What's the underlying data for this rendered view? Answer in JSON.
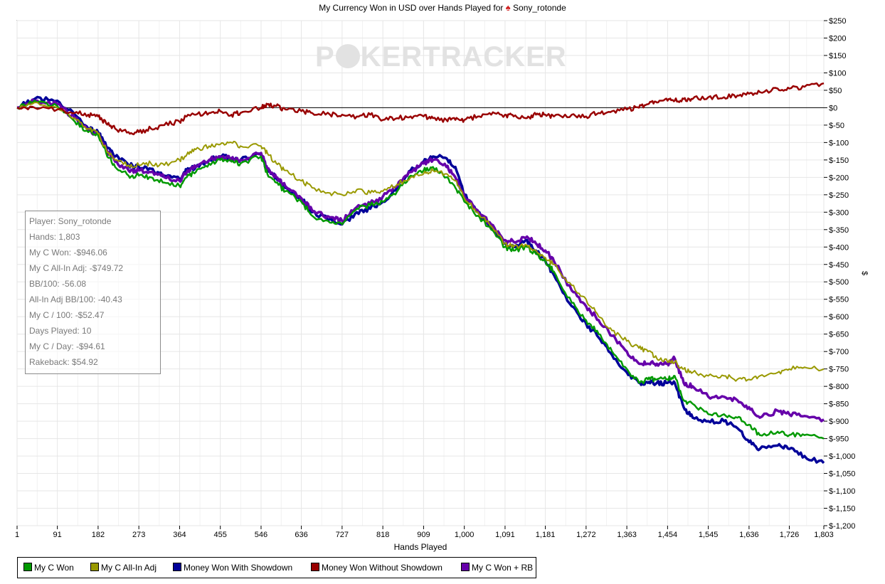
{
  "chart_data": {
    "type": "line",
    "title": "My Currency Won in USD over Hands Played for",
    "player": "Sony_rotonde",
    "watermark": {
      "text_left": "P",
      "text_right": "KERTRACKER"
    },
    "xlabel": "Hands Played",
    "ylabel": "$",
    "xlim": [
      1,
      1803
    ],
    "ylim": [
      -1200,
      250
    ],
    "x_ticks": [
      "1",
      "91",
      "182",
      "273",
      "364",
      "455",
      "546",
      "636",
      "727",
      "818",
      "909",
      "1,000",
      "1,091",
      "1,181",
      "1,272",
      "1,363",
      "1,454",
      "1,545",
      "1,636",
      "1,726",
      "1,803"
    ],
    "x_tick_values": [
      1,
      91,
      182,
      273,
      364,
      455,
      546,
      636,
      727,
      818,
      909,
      1000,
      1091,
      1181,
      1272,
      1363,
      1454,
      1545,
      1636,
      1726,
      1803
    ],
    "y_ticks": [
      "$250",
      "$200",
      "$150",
      "$100",
      "$50",
      "$0",
      "$-50",
      "$-100",
      "$-150",
      "$-200",
      "$-250",
      "$-300",
      "$-350",
      "$-400",
      "$-450",
      "$-500",
      "$-550",
      "$-600",
      "$-650",
      "$-700",
      "$-750",
      "$-800",
      "$-850",
      "$-900",
      "$-950",
      "$-1,000",
      "$-1,050",
      "$-1,100",
      "$-1,150",
      "$-1,200"
    ],
    "y_tick_values": [
      250,
      200,
      150,
      100,
      50,
      0,
      -50,
      -100,
      -150,
      -200,
      -250,
      -300,
      -350,
      -400,
      -450,
      -500,
      -550,
      -600,
      -650,
      -700,
      -750,
      -800,
      -850,
      -900,
      -950,
      -1000,
      -1050,
      -1100,
      -1150,
      -1200
    ],
    "grid": true,
    "legend_position": "bottom",
    "x": [
      1,
      40,
      91,
      130,
      160,
      182,
      200,
      220,
      250,
      273,
      300,
      330,
      364,
      380,
      400,
      430,
      455,
      480,
      500,
      546,
      560,
      580,
      600,
      636,
      660,
      700,
      727,
      760,
      790,
      818,
      850,
      880,
      909,
      930,
      960,
      980,
      1000,
      1030,
      1060,
      1091,
      1110,
      1140,
      1160,
      1181,
      1200,
      1240,
      1272,
      1300,
      1330,
      1363,
      1390,
      1410,
      1430,
      1454,
      1470,
      1490,
      1510,
      1545,
      1580,
      1610,
      1636,
      1660,
      1700,
      1726,
      1760,
      1803
    ],
    "series": [
      {
        "name": "My C Won",
        "color": "#009900",
        "values": [
          0,
          20,
          5,
          -40,
          -70,
          -80,
          -130,
          -170,
          -195,
          -195,
          -200,
          -215,
          -225,
          -200,
          -185,
          -160,
          -150,
          -155,
          -160,
          -140,
          -190,
          -215,
          -240,
          -270,
          -310,
          -330,
          -335,
          -290,
          -280,
          -270,
          -240,
          -195,
          -180,
          -170,
          -200,
          -230,
          -270,
          -310,
          -350,
          -400,
          -410,
          -400,
          -420,
          -440,
          -470,
          -560,
          -610,
          -650,
          -700,
          -750,
          -790,
          -780,
          -780,
          -780,
          -770,
          -840,
          -850,
          -880,
          -880,
          -890,
          -910,
          -940,
          -930,
          -940,
          -940,
          -950
        ]
      },
      {
        "name": "My C All-In Adj",
        "color": "#999900",
        "values": [
          0,
          15,
          0,
          -30,
          -60,
          -75,
          -120,
          -150,
          -165,
          -165,
          -160,
          -165,
          -150,
          -135,
          -120,
          -110,
          -105,
          -100,
          -110,
          -110,
          -130,
          -160,
          -180,
          -210,
          -230,
          -245,
          -250,
          -235,
          -245,
          -240,
          -220,
          -200,
          -190,
          -180,
          -190,
          -210,
          -260,
          -300,
          -340,
          -390,
          -400,
          -395,
          -410,
          -430,
          -450,
          -510,
          -550,
          -600,
          -640,
          -670,
          -690,
          -700,
          -720,
          -730,
          -730,
          -750,
          -760,
          -770,
          -770,
          -780,
          -780,
          -770,
          -760,
          -750,
          -745,
          -750
        ]
      },
      {
        "name": "Money Won With Showdown",
        "color": "#000099",
        "values": [
          0,
          25,
          20,
          -20,
          -60,
          -70,
          -110,
          -140,
          -165,
          -170,
          -175,
          -195,
          -205,
          -180,
          -170,
          -150,
          -140,
          -145,
          -150,
          -135,
          -180,
          -200,
          -230,
          -260,
          -300,
          -320,
          -335,
          -300,
          -290,
          -270,
          -230,
          -180,
          -155,
          -140,
          -145,
          -170,
          -250,
          -300,
          -340,
          -390,
          -400,
          -380,
          -410,
          -440,
          -480,
          -570,
          -620,
          -660,
          -710,
          -760,
          -790,
          -790,
          -790,
          -790,
          -790,
          -860,
          -890,
          -900,
          -900,
          -920,
          -960,
          -980,
          -970,
          -980,
          -1000,
          -1020
        ]
      },
      {
        "name": "Money Won Without Showdown",
        "color": "#990000",
        "values": [
          0,
          0,
          -5,
          -15,
          -20,
          -25,
          -45,
          -60,
          -70,
          -70,
          -60,
          -50,
          -40,
          -25,
          -20,
          -15,
          -10,
          -20,
          -15,
          0,
          10,
          5,
          -5,
          -10,
          -15,
          -20,
          -20,
          -25,
          -20,
          -35,
          -30,
          -25,
          -25,
          -30,
          -35,
          -35,
          -35,
          -25,
          -20,
          -20,
          -25,
          -30,
          -20,
          -20,
          -25,
          -20,
          -25,
          -15,
          -10,
          -5,
          0,
          10,
          15,
          20,
          20,
          25,
          25,
          30,
          30,
          35,
          40,
          45,
          55,
          55,
          60,
          70
        ]
      },
      {
        "name": "My C Won + RB",
        "color": "#6600aa",
        "values": [
          0,
          20,
          10,
          -30,
          -65,
          -75,
          -120,
          -155,
          -180,
          -180,
          -185,
          -200,
          -210,
          -185,
          -170,
          -150,
          -140,
          -145,
          -150,
          -130,
          -175,
          -200,
          -225,
          -260,
          -295,
          -315,
          -325,
          -285,
          -275,
          -255,
          -225,
          -185,
          -160,
          -150,
          -170,
          -200,
          -255,
          -295,
          -335,
          -380,
          -385,
          -370,
          -390,
          -410,
          -440,
          -525,
          -570,
          -610,
          -655,
          -700,
          -735,
          -735,
          -735,
          -735,
          -720,
          -790,
          -800,
          -830,
          -830,
          -840,
          -860,
          -890,
          -870,
          -880,
          -885,
          -895
        ]
      }
    ]
  },
  "infobox": {
    "lines": [
      "Player: Sony_rotonde",
      "Hands: 1,803",
      "My C Won: -$946.06",
      "My C All-In Adj: -$749.72",
      "BB/100: -56.08",
      "All-In Adj BB/100: -40.43",
      "My C / 100: -$52.47",
      "Days Played: 10",
      "My C / Day: -$94.61",
      "Rakeback: $54.92"
    ]
  },
  "legend": [
    {
      "label": "My C Won",
      "color": "#009900"
    },
    {
      "label": "My C All-In Adj",
      "color": "#999900"
    },
    {
      "label": "Money Won With Showdown",
      "color": "#000099"
    },
    {
      "label": "Money Won Without Showdown",
      "color": "#990000"
    },
    {
      "label": "My C Won + RB",
      "color": "#6600aa"
    }
  ]
}
